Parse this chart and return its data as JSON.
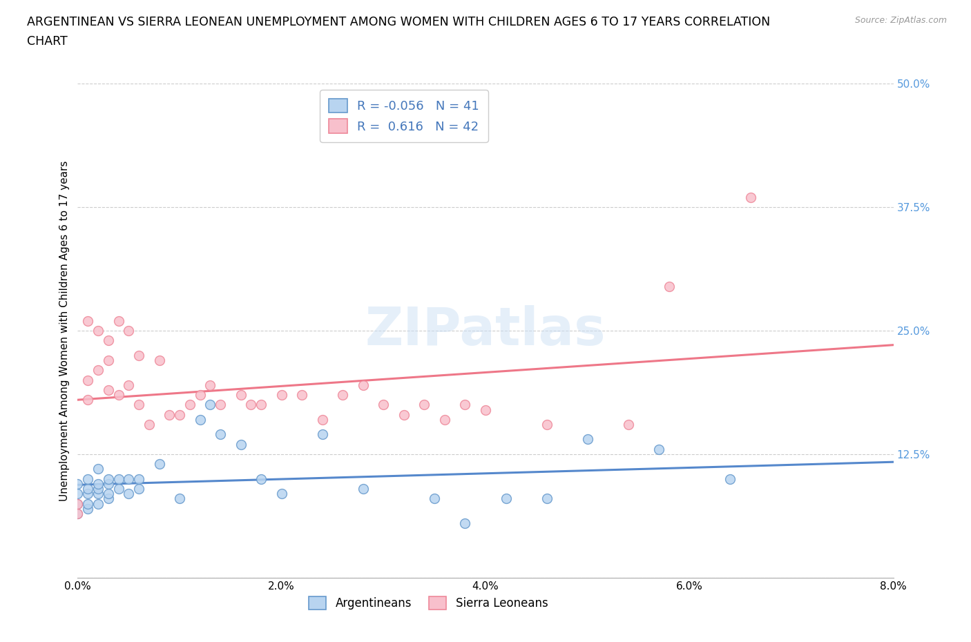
{
  "title_line1": "ARGENTINEAN VS SIERRA LEONEAN UNEMPLOYMENT AMONG WOMEN WITH CHILDREN AGES 6 TO 17 YEARS CORRELATION",
  "title_line2": "CHART",
  "source": "Source: ZipAtlas.com",
  "ylabel": "Unemployment Among Women with Children Ages 6 to 17 years",
  "xlim": [
    0.0,
    0.08
  ],
  "ylim": [
    0.0,
    0.5
  ],
  "xticks": [
    0.0,
    0.02,
    0.04,
    0.06,
    0.08
  ],
  "xtick_labels": [
    "0.0%",
    "2.0%",
    "4.0%",
    "6.0%",
    "8.0%"
  ],
  "yticks": [
    0.0,
    0.125,
    0.25,
    0.375,
    0.5
  ],
  "ytick_labels": [
    "",
    "12.5%",
    "25.0%",
    "37.5%",
    "50.0%"
  ],
  "watermark": "ZIPatlas",
  "argentinean_color": "#b8d4f0",
  "sierra_leonean_color": "#f8c0cc",
  "argentinean_edge_color": "#6699cc",
  "sierra_leonean_edge_color": "#ee8899",
  "argentinean_line_color": "#5588cc",
  "sierra_leonean_line_color": "#ee7788",
  "R_arg": -0.056,
  "N_arg": 41,
  "R_sle": 0.616,
  "N_sle": 42,
  "argentinean_x": [
    0.0,
    0.0,
    0.0,
    0.0,
    0.001,
    0.001,
    0.001,
    0.001,
    0.001,
    0.002,
    0.002,
    0.002,
    0.002,
    0.002,
    0.003,
    0.003,
    0.003,
    0.003,
    0.004,
    0.004,
    0.005,
    0.005,
    0.006,
    0.006,
    0.008,
    0.01,
    0.012,
    0.013,
    0.014,
    0.016,
    0.018,
    0.02,
    0.024,
    0.028,
    0.035,
    0.038,
    0.042,
    0.046,
    0.05,
    0.057,
    0.064
  ],
  "argentinean_y": [
    0.065,
    0.075,
    0.085,
    0.095,
    0.07,
    0.075,
    0.085,
    0.09,
    0.1,
    0.075,
    0.085,
    0.09,
    0.095,
    0.11,
    0.08,
    0.085,
    0.095,
    0.1,
    0.09,
    0.1,
    0.085,
    0.1,
    0.09,
    0.1,
    0.115,
    0.08,
    0.16,
    0.175,
    0.145,
    0.135,
    0.1,
    0.085,
    0.145,
    0.09,
    0.08,
    0.055,
    0.08,
    0.08,
    0.14,
    0.13,
    0.1
  ],
  "sierra_leonean_x": [
    0.0,
    0.0,
    0.001,
    0.001,
    0.001,
    0.002,
    0.002,
    0.003,
    0.003,
    0.003,
    0.004,
    0.004,
    0.005,
    0.005,
    0.006,
    0.006,
    0.007,
    0.008,
    0.009,
    0.01,
    0.011,
    0.012,
    0.013,
    0.014,
    0.016,
    0.017,
    0.018,
    0.02,
    0.022,
    0.024,
    0.026,
    0.028,
    0.03,
    0.032,
    0.034,
    0.036,
    0.038,
    0.04,
    0.046,
    0.054,
    0.058,
    0.066
  ],
  "sierra_leonean_y": [
    0.065,
    0.075,
    0.18,
    0.26,
    0.2,
    0.21,
    0.25,
    0.19,
    0.22,
    0.24,
    0.185,
    0.26,
    0.195,
    0.25,
    0.175,
    0.225,
    0.155,
    0.22,
    0.165,
    0.165,
    0.175,
    0.185,
    0.195,
    0.175,
    0.185,
    0.175,
    0.175,
    0.185,
    0.185,
    0.16,
    0.185,
    0.195,
    0.175,
    0.165,
    0.175,
    0.16,
    0.175,
    0.17,
    0.155,
    0.155,
    0.295,
    0.385
  ],
  "legend_label_arg": "Argentineans",
  "legend_label_sle": "Sierra Leoneans",
  "background_color": "#ffffff",
  "grid_color": "#cccccc",
  "title_fontsize": 12.5,
  "tick_fontsize": 11,
  "ylabel_fontsize": 11,
  "legend_fontsize": 13,
  "source_fontsize": 9,
  "watermark_fontsize": 55,
  "watermark_color": "#cce0f5",
  "watermark_alpha": 0.5
}
